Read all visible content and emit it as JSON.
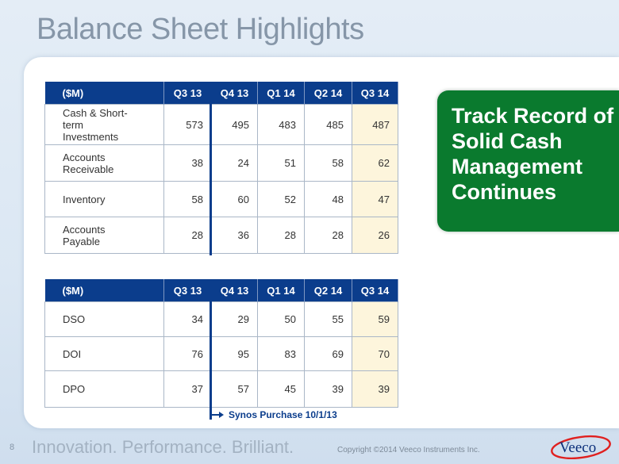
{
  "slide": {
    "title": "Balance Sheet Highlights",
    "page_number": "8",
    "tagline": "Innovation. Performance. Brilliant.",
    "copyright": "Copyright ©2014 Veeco Instruments Inc.",
    "logo_text": "Veeco"
  },
  "table1": {
    "headers": [
      "($M)",
      "Q3 13",
      "Q4 13",
      "Q1 14",
      "Q2 14",
      "Q3 14"
    ],
    "rows": [
      {
        "label": "Cash & Short-term Investments",
        "values": [
          "573",
          "495",
          "483",
          "485",
          "487"
        ]
      },
      {
        "label": "Accounts Receivable",
        "values": [
          "38",
          "24",
          "51",
          "58",
          "62"
        ]
      },
      {
        "label": "Inventory",
        "values": [
          "58",
          "60",
          "52",
          "48",
          "47"
        ]
      },
      {
        "label": "Accounts Payable",
        "values": [
          "28",
          "36",
          "28",
          "28",
          "26"
        ]
      }
    ]
  },
  "table2": {
    "headers": [
      "($M)",
      "Q3 13",
      "Q4 13",
      "Q1 14",
      "Q2 14",
      "Q3 14"
    ],
    "rows": [
      {
        "label": "DSO",
        "values": [
          "34",
          "29",
          "50",
          "55",
          "59"
        ]
      },
      {
        "label": "DOI",
        "values": [
          "76",
          "95",
          "83",
          "69",
          "70"
        ]
      },
      {
        "label": "DPO",
        "values": [
          "37",
          "57",
          "45",
          "39",
          "39"
        ]
      }
    ]
  },
  "annotation": {
    "text": "Synos Purchase 10/1/13"
  },
  "callout": {
    "text": "Track Record of Solid Cash Management Continues"
  },
  "colors": {
    "header_blue": "#0b3d8c",
    "highlight_column": "#fdf5dc",
    "callout_green": "#0a7a2e",
    "title_gray": "#8696a8"
  }
}
